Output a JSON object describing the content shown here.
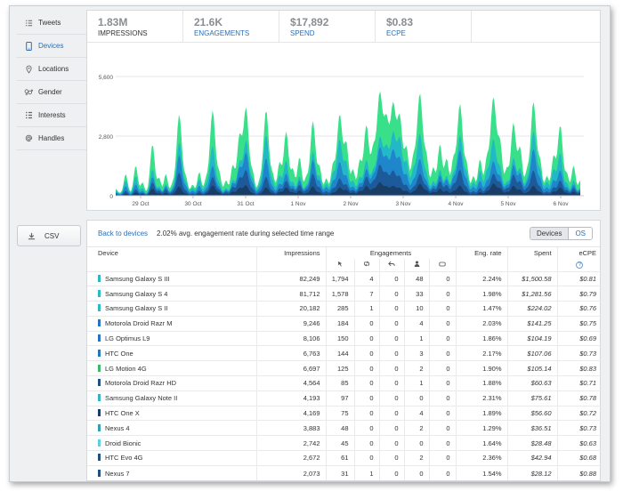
{
  "sidebar": {
    "items": [
      {
        "label": "Tweets",
        "icon": "list-icon"
      },
      {
        "label": "Devices",
        "icon": "phone-icon",
        "active": true
      },
      {
        "label": "Locations",
        "icon": "pin-icon"
      },
      {
        "label": "Gender",
        "icon": "gender-icon"
      },
      {
        "label": "Interests",
        "icon": "grid-icon"
      },
      {
        "label": "Handles",
        "icon": "at-icon"
      }
    ],
    "csv_label": "CSV"
  },
  "stats": [
    {
      "value": "1.83M",
      "label": "IMPRESSIONS",
      "active": true
    },
    {
      "value": "21.6K",
      "label": "ENGAGEMENTS"
    },
    {
      "value": "$17,892",
      "label": "SPEND"
    },
    {
      "value": "$0.83",
      "label": "ECPE"
    }
  ],
  "chart_data": {
    "type": "area",
    "y_ticks": [
      "5,600",
      "2,800",
      "0"
    ],
    "ylim": [
      0,
      5600
    ],
    "x_ticks": [
      "29 Oct",
      "30 Oct",
      "31 Oct",
      "1 Nov",
      "2 Nov",
      "3 Nov",
      "4 Nov",
      "5 Nov",
      "6 Nov"
    ],
    "colors": [
      "#39e08a",
      "#23b8c8",
      "#1f86cc",
      "#1d5a9a",
      "#1a3d66"
    ],
    "peaks": [
      [
        0.0,
        200
      ],
      [
        0.3,
        900
      ],
      [
        0.6,
        1300
      ],
      [
        0.8,
        500
      ],
      [
        1.1,
        2300
      ],
      [
        1.3,
        700
      ],
      [
        1.5,
        900
      ],
      [
        1.7,
        400
      ],
      [
        1.9,
        3700
      ],
      [
        2.1,
        700
      ],
      [
        2.3,
        400
      ],
      [
        2.5,
        1000
      ],
      [
        2.7,
        600
      ],
      [
        2.9,
        3900
      ],
      [
        3.1,
        900
      ],
      [
        3.3,
        600
      ],
      [
        3.5,
        1300
      ],
      [
        3.7,
        2600
      ],
      [
        3.9,
        4000
      ],
      [
        4.1,
        900
      ],
      [
        4.3,
        500
      ],
      [
        4.5,
        3900
      ],
      [
        4.7,
        800
      ],
      [
        4.9,
        1400
      ],
      [
        5.1,
        2900
      ],
      [
        5.3,
        1100
      ],
      [
        5.5,
        1700
      ],
      [
        5.7,
        700
      ],
      [
        5.9,
        3400
      ],
      [
        6.1,
        1200
      ],
      [
        6.3,
        700
      ],
      [
        6.5,
        1300
      ],
      [
        6.7,
        3700
      ],
      [
        6.9,
        2300
      ],
      [
        7.1,
        1100
      ],
      [
        7.3,
        1500
      ],
      [
        7.5,
        3200
      ],
      [
        7.7,
        1900
      ],
      [
        7.9,
        4700
      ],
      [
        8.1,
        3200
      ],
      [
        8.3,
        4100
      ],
      [
        8.5,
        3500
      ],
      [
        8.7,
        2100
      ],
      [
        8.9,
        1500
      ],
      [
        9.1,
        4700
      ],
      [
        9.3,
        1600
      ],
      [
        9.5,
        1200
      ],
      [
        9.7,
        2300
      ],
      [
        9.9,
        1600
      ],
      [
        10.1,
        1500
      ],
      [
        10.3,
        4200
      ],
      [
        10.5,
        1300
      ],
      [
        10.7,
        800
      ],
      [
        10.9,
        1600
      ],
      [
        11.1,
        1500
      ],
      [
        11.3,
        4500
      ],
      [
        11.5,
        2300
      ],
      [
        11.7,
        1100
      ],
      [
        11.9,
        3300
      ],
      [
        12.1,
        2100
      ],
      [
        12.3,
        900
      ],
      [
        12.5,
        4300
      ],
      [
        12.7,
        1400
      ],
      [
        12.9,
        800
      ],
      [
        13.1,
        1700
      ],
      [
        13.3,
        3200
      ],
      [
        13.5,
        900
      ],
      [
        13.7,
        1300
      ],
      [
        13.9,
        600
      ]
    ]
  },
  "table": {
    "back_link": "Back to devices",
    "summary": "2.02% avg. engagement rate during selected time range",
    "toggle": {
      "on": "Devices",
      "off": "OS"
    },
    "headers": {
      "device": "Device",
      "impressions": "Impressions",
      "engagements": "Engagements",
      "eng_rate": "Eng. rate",
      "spent": "Spent",
      "ecpe": "eCPE",
      "help": "?"
    },
    "sub_icons": [
      "cursor-icon",
      "retweet-icon",
      "reply-icon",
      "follow-icon",
      "favorite-icon"
    ],
    "rows": [
      {
        "device": "Samsung Galaxy S III",
        "color": "#2fb7c8",
        "impressions": "82,249",
        "e1": "1,794",
        "e2": "4",
        "e3": "0",
        "e4": "48",
        "e5": "0",
        "rate": "2.24%",
        "spent": "$1,500.58",
        "ecpe": "$0.81"
      },
      {
        "device": "Samsung Galaxy S 4",
        "color": "#2fb7c8",
        "impressions": "81,712",
        "e1": "1,578",
        "e2": "7",
        "e3": "0",
        "e4": "33",
        "e5": "0",
        "rate": "1.98%",
        "spent": "$1,281.56",
        "ecpe": "$0.79"
      },
      {
        "device": "Samsung Galaxy S II",
        "color": "#2fb7c8",
        "impressions": "20,182",
        "e1": "285",
        "e2": "1",
        "e3": "0",
        "e4": "10",
        "e5": "0",
        "rate": "1.47%",
        "spent": "$224.02",
        "ecpe": "$0.76"
      },
      {
        "device": "Motorola Droid Razr M",
        "color": "#2574c4",
        "impressions": "9,246",
        "e1": "184",
        "e2": "0",
        "e3": "0",
        "e4": "4",
        "e5": "0",
        "rate": "2.03%",
        "spent": "$141.25",
        "ecpe": "$0.75"
      },
      {
        "device": "LG Optimus L9",
        "color": "#2574c4",
        "impressions": "8,106",
        "e1": "150",
        "e2": "0",
        "e3": "0",
        "e4": "1",
        "e5": "0",
        "rate": "1.86%",
        "spent": "$104.19",
        "ecpe": "$0.69"
      },
      {
        "device": "HTC One",
        "color": "#2574c4",
        "impressions": "6,763",
        "e1": "144",
        "e2": "0",
        "e3": "0",
        "e4": "3",
        "e5": "0",
        "rate": "2.17%",
        "spent": "$107.06",
        "ecpe": "$0.73"
      },
      {
        "device": "LG Motion 4G",
        "color": "#3cba6c",
        "impressions": "6,697",
        "e1": "125",
        "e2": "0",
        "e3": "0",
        "e4": "2",
        "e5": "0",
        "rate": "1.90%",
        "spent": "$105.14",
        "ecpe": "$0.83"
      },
      {
        "device": "Motorola Droid Razr HD",
        "color": "#1e4f86",
        "impressions": "4,564",
        "e1": "85",
        "e2": "0",
        "e3": "0",
        "e4": "1",
        "e5": "0",
        "rate": "1.88%",
        "spent": "$60.63",
        "ecpe": "$0.71"
      },
      {
        "device": "Samsung Galaxy Note II",
        "color": "#2fb7c8",
        "impressions": "4,193",
        "e1": "97",
        "e2": "0",
        "e3": "0",
        "e4": "0",
        "e5": "0",
        "rate": "2.31%",
        "spent": "$75.61",
        "ecpe": "$0.78"
      },
      {
        "device": "HTC One X",
        "color": "#1e3b6a",
        "impressions": "4,169",
        "e1": "75",
        "e2": "0",
        "e3": "0",
        "e4": "4",
        "e5": "0",
        "rate": "1.89%",
        "spent": "$56.60",
        "ecpe": "$0.72"
      },
      {
        "device": "Nexus 4",
        "color": "#2fa0b8",
        "impressions": "3,883",
        "e1": "48",
        "e2": "0",
        "e3": "0",
        "e4": "2",
        "e5": "0",
        "rate": "1.29%",
        "spent": "$36.51",
        "ecpe": "$0.73"
      },
      {
        "device": "Droid Bionic",
        "color": "#5ed0e6",
        "impressions": "2,742",
        "e1": "45",
        "e2": "0",
        "e3": "0",
        "e4": "0",
        "e5": "0",
        "rate": "1.64%",
        "spent": "$28.48",
        "ecpe": "$0.63"
      },
      {
        "device": "HTC Evo 4G",
        "color": "#1e4f86",
        "impressions": "2,672",
        "e1": "61",
        "e2": "0",
        "e3": "0",
        "e4": "2",
        "e5": "0",
        "rate": "2.36%",
        "spent": "$42.94",
        "ecpe": "$0.68"
      },
      {
        "device": "Nexus 7",
        "color": "#1e4f86",
        "impressions": "2,073",
        "e1": "31",
        "e2": "1",
        "e3": "0",
        "e4": "0",
        "e5": "0",
        "rate": "1.54%",
        "spent": "$28.12",
        "ecpe": "$0.88"
      }
    ]
  }
}
